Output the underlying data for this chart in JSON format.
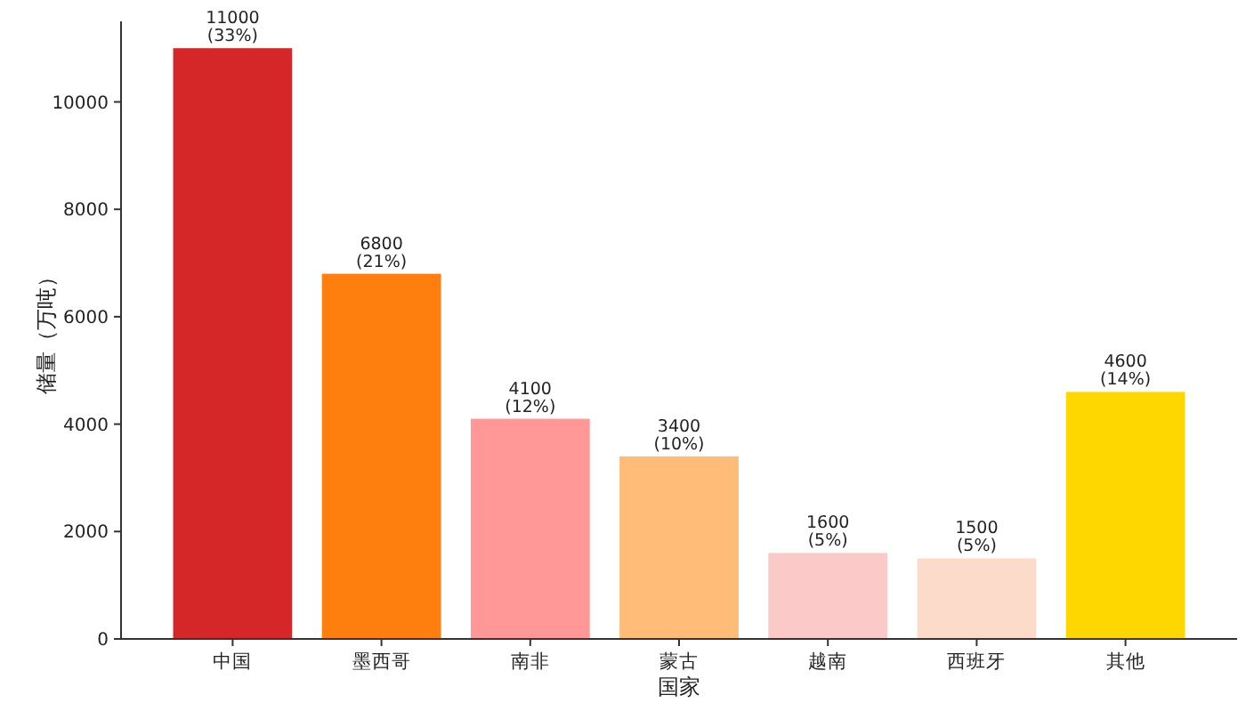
{
  "chart_data": {
    "type": "bar",
    "xlabel": "国家",
    "ylabel": "储量（万吨）",
    "categories": [
      "中国",
      "墨西哥",
      "南非",
      "蒙古",
      "越南",
      "西班牙",
      "其他"
    ],
    "values": [
      11000,
      6800,
      4100,
      3400,
      1600,
      1500,
      4600
    ],
    "colors": [
      "#d62728",
      "#ff7f0e",
      "#ff9896",
      "#ffbb78",
      "#fcc9c9",
      "#fddbcb",
      "#ffd700"
    ],
    "value_labels": [
      "11000\n(33%)",
      "6800\n(21%)",
      "4100\n(12%)",
      "3400\n(10%)",
      "1600\n(5%)",
      "1500\n(5%)",
      "4600\n(14%)"
    ],
    "ylim": [
      0,
      11500
    ],
    "yticks": [
      0,
      2000,
      4000,
      6000,
      8000,
      10000
    ],
    "grid": false
  }
}
